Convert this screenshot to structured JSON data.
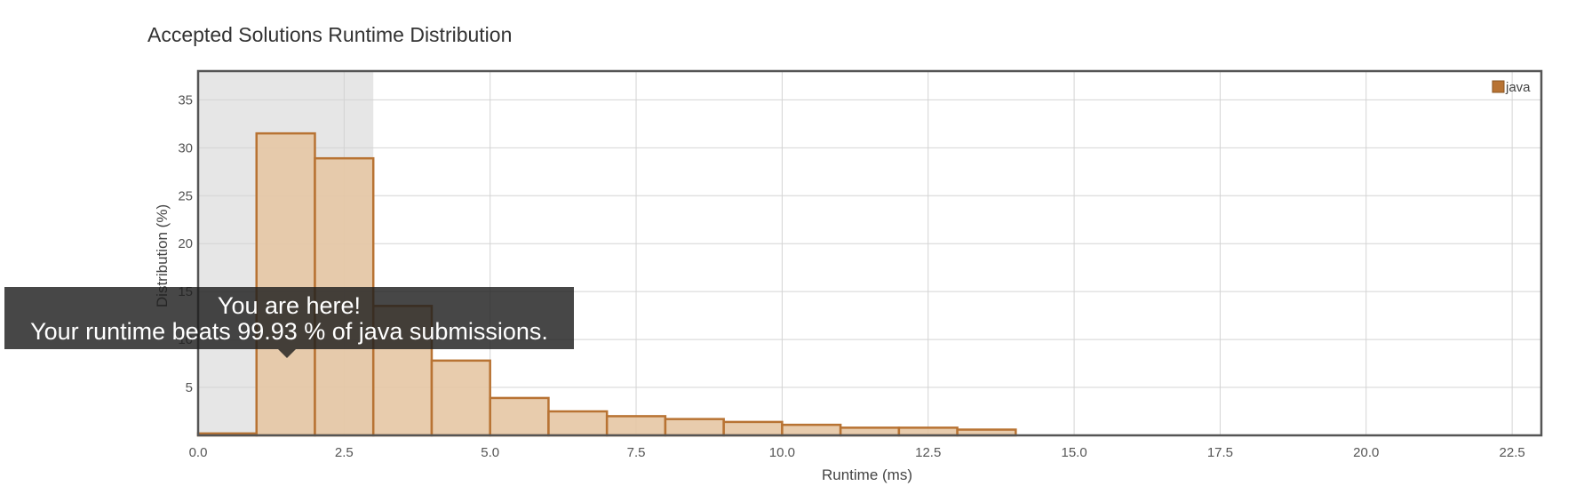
{
  "chart_data": {
    "type": "bar",
    "title": "Accepted Solutions Runtime Distribution",
    "xlabel": "Runtime (ms)",
    "ylabel": "Distribution (%)",
    "xlim": [
      0,
      23
    ],
    "ylim": [
      0,
      38
    ],
    "x_ticks": [
      "0.0",
      "2.5",
      "5.0",
      "7.5",
      "10.0",
      "12.5",
      "15.0",
      "17.5",
      "20.0",
      "22.5"
    ],
    "y_ticks": [
      "5",
      "10",
      "15",
      "20",
      "25",
      "30",
      "35"
    ],
    "bin_width": 1,
    "series": [
      {
        "name": "java",
        "color": "#b87333",
        "fill": "#e6c6a4",
        "bins": [
          {
            "start": 0,
            "value": 0.2
          },
          {
            "start": 1,
            "value": 31.5
          },
          {
            "start": 2,
            "value": 28.9
          },
          {
            "start": 3,
            "value": 13.5
          },
          {
            "start": 4,
            "value": 7.8
          },
          {
            "start": 5,
            "value": 3.9
          },
          {
            "start": 6,
            "value": 2.5
          },
          {
            "start": 7,
            "value": 2.0
          },
          {
            "start": 8,
            "value": 1.7
          },
          {
            "start": 9,
            "value": 1.4
          },
          {
            "start": 10,
            "value": 1.1
          },
          {
            "start": 11,
            "value": 0.8
          },
          {
            "start": 12,
            "value": 0.8
          },
          {
            "start": 13,
            "value": 0.6
          }
        ]
      }
    ],
    "highlight_range": [
      0,
      3
    ],
    "legend": {
      "label": "java",
      "position": "top-right"
    },
    "grid": true
  },
  "tooltip": {
    "line1": "You are here!",
    "line2": "Your runtime beats 99.93 % of java submissions."
  }
}
